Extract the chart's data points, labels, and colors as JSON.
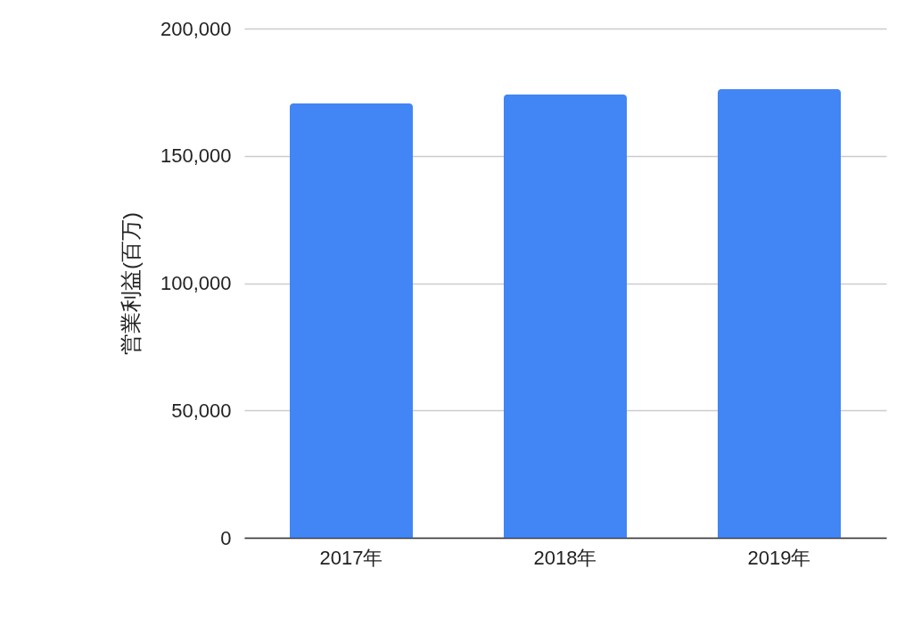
{
  "chart_data": {
    "type": "bar",
    "ylabel": "営業利益(百万)",
    "categories": [
      "2017年",
      "2018年",
      "2019年"
    ],
    "values": [
      170600,
      174100,
      176200
    ],
    "color": "#4285f4",
    "ylim": [
      0,
      200000
    ],
    "yticks": [
      0,
      {
        "value": 50000,
        "label": "50,000"
      },
      {
        "value": 100000,
        "label": "100,000"
      },
      {
        "value": 150000,
        "label": "150,000"
      },
      {
        "value": 200000,
        "label": "200,000"
      }
    ],
    "grid": "y"
  }
}
